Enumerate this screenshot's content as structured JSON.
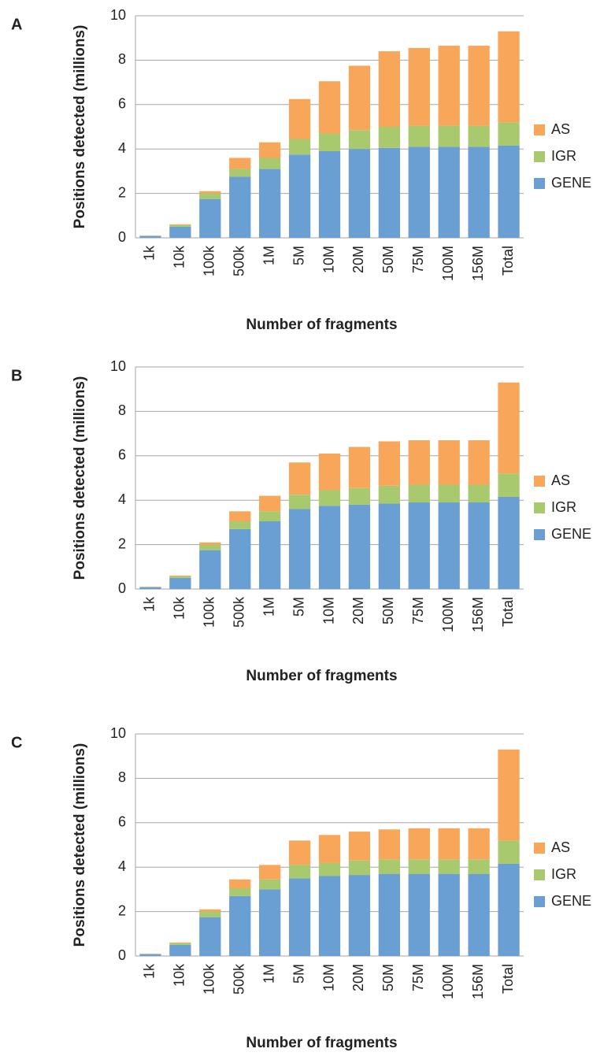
{
  "chart_data": [
    {
      "type": "bar",
      "stacked": true,
      "panel": "A",
      "y_label": "Positions detected (millions)",
      "x_label": "Number of fragments",
      "categories": [
        "1k",
        "10k",
        "100k",
        "500k",
        "1M",
        "5M",
        "10M",
        "20M",
        "50M",
        "75M",
        "100M",
        "156M",
        "Total"
      ],
      "series": [
        {
          "name": "GENE",
          "color": "#6a9fd4",
          "values": [
            0.08,
            0.5,
            1.75,
            2.75,
            3.1,
            3.75,
            3.9,
            4.0,
            4.05,
            4.1,
            4.1,
            4.1,
            4.15
          ]
        },
        {
          "name": "IGR",
          "color": "#a9c96e",
          "values": [
            0.02,
            0.08,
            0.25,
            0.35,
            0.5,
            0.7,
            0.8,
            0.85,
            0.95,
            0.95,
            0.95,
            0.95,
            1.05
          ]
        },
        {
          "name": "AS",
          "color": "#f8a65a",
          "values": [
            0.01,
            0.03,
            0.1,
            0.5,
            0.7,
            1.8,
            2.35,
            2.9,
            3.4,
            3.5,
            3.6,
            3.6,
            4.1
          ]
        }
      ],
      "ylim": [
        0,
        10
      ],
      "yticks": [
        0,
        2,
        4,
        6,
        8,
        10
      ],
      "grid": true,
      "legend": "right"
    },
    {
      "type": "bar",
      "stacked": true,
      "panel": "B",
      "y_label": "Positions detected (millions)",
      "x_label": "Number of fragments",
      "categories": [
        "1k",
        "10k",
        "100k",
        "500k",
        "1M",
        "5M",
        "10M",
        "20M",
        "50M",
        "75M",
        "100M",
        "156M",
        "Total"
      ],
      "series": [
        {
          "name": "GENE",
          "color": "#6a9fd4",
          "values": [
            0.08,
            0.5,
            1.75,
            2.7,
            3.05,
            3.6,
            3.75,
            3.8,
            3.85,
            3.9,
            3.9,
            3.9,
            4.15
          ]
        },
        {
          "name": "IGR",
          "color": "#a9c96e",
          "values": [
            0.02,
            0.08,
            0.25,
            0.35,
            0.45,
            0.65,
            0.7,
            0.75,
            0.8,
            0.8,
            0.8,
            0.8,
            1.05
          ]
        },
        {
          "name": "AS",
          "color": "#f8a65a",
          "values": [
            0.01,
            0.03,
            0.1,
            0.45,
            0.7,
            1.45,
            1.65,
            1.85,
            2.0,
            2.0,
            2.0,
            2.0,
            4.1
          ]
        }
      ],
      "ylim": [
        0,
        10
      ],
      "yticks": [
        0,
        2,
        4,
        6,
        8,
        10
      ],
      "grid": true,
      "legend": "right"
    },
    {
      "type": "bar",
      "stacked": true,
      "panel": "C",
      "y_label": "Positions detected (millions)",
      "x_label": "Number of fragments",
      "categories": [
        "1k",
        "10k",
        "100k",
        "500k",
        "1M",
        "5M",
        "10M",
        "20M",
        "50M",
        "75M",
        "100M",
        "156M",
        "Total"
      ],
      "series": [
        {
          "name": "GENE",
          "color": "#6a9fd4",
          "values": [
            0.08,
            0.5,
            1.75,
            2.7,
            3.0,
            3.5,
            3.6,
            3.65,
            3.7,
            3.7,
            3.7,
            3.7,
            4.15
          ]
        },
        {
          "name": "IGR",
          "color": "#a9c96e",
          "values": [
            0.02,
            0.08,
            0.25,
            0.35,
            0.45,
            0.6,
            0.6,
            0.65,
            0.65,
            0.65,
            0.65,
            0.65,
            1.05
          ]
        },
        {
          "name": "AS",
          "color": "#f8a65a",
          "values": [
            0.01,
            0.03,
            0.1,
            0.4,
            0.65,
            1.1,
            1.25,
            1.3,
            1.35,
            1.4,
            1.4,
            1.4,
            4.1
          ]
        }
      ],
      "ylim": [
        0,
        10
      ],
      "yticks": [
        0,
        2,
        4,
        6,
        8,
        10
      ],
      "grid": true,
      "legend": "right"
    }
  ]
}
